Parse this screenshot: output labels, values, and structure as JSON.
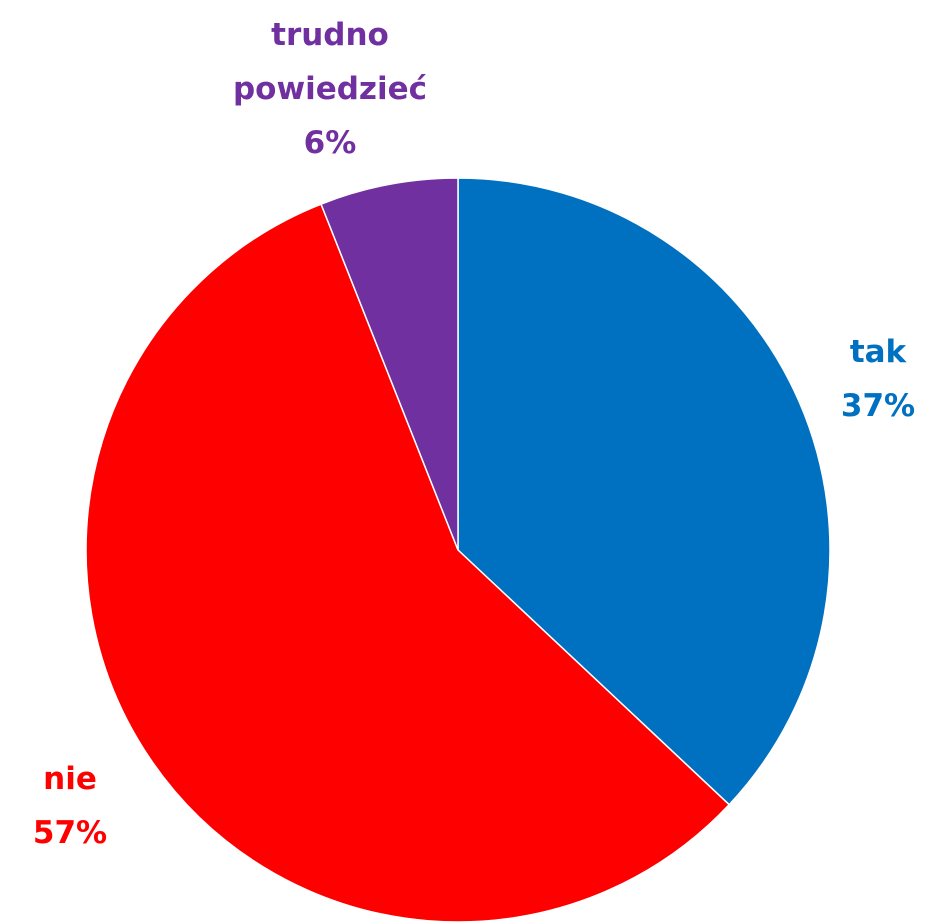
{
  "chart_data": {
    "type": "pie",
    "categories": [
      "tak",
      "nie",
      "trudno powiedzieć"
    ],
    "values": [
      37,
      57,
      6
    ],
    "value_labels": [
      "37%",
      "57%",
      "6%"
    ],
    "colors": [
      "#0070c0",
      "#ff0000",
      "#7030a0"
    ]
  }
}
